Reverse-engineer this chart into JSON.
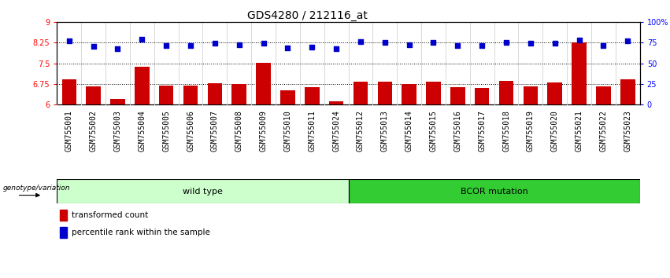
{
  "title": "GDS4280 / 212116_at",
  "categories": [
    "GSM755001",
    "GSM755002",
    "GSM755003",
    "GSM755004",
    "GSM755005",
    "GSM755006",
    "GSM755007",
    "GSM755008",
    "GSM755009",
    "GSM755010",
    "GSM755011",
    "GSM755024",
    "GSM755012",
    "GSM755013",
    "GSM755014",
    "GSM755015",
    "GSM755016",
    "GSM755017",
    "GSM755018",
    "GSM755019",
    "GSM755020",
    "GSM755021",
    "GSM755022",
    "GSM755023"
  ],
  "red_values": [
    6.92,
    6.64,
    6.18,
    7.38,
    6.68,
    6.69,
    6.77,
    6.75,
    7.52,
    6.52,
    6.63,
    6.12,
    6.83,
    6.82,
    6.73,
    6.84,
    6.62,
    6.61,
    6.85,
    6.65,
    6.79,
    8.25,
    6.65,
    6.92
  ],
  "blue_values": [
    77,
    71,
    68,
    79,
    72,
    72,
    74,
    73,
    74,
    69,
    70,
    68,
    76,
    75,
    73,
    75,
    72,
    72,
    75,
    74,
    74,
    78,
    72,
    77
  ],
  "wild_type_count": 12,
  "bcor_count": 12,
  "ylim_left": [
    6.0,
    9.0
  ],
  "ylim_right": [
    0,
    100
  ],
  "yticks_left": [
    6.0,
    6.75,
    7.5,
    8.25,
    9.0
  ],
  "ytick_labels_left": [
    "6",
    "6.75",
    "7.5",
    "8.25",
    "9"
  ],
  "yticks_right": [
    0,
    25,
    50,
    75,
    100
  ],
  "ytick_labels_right": [
    "0",
    "25",
    "50",
    "75",
    "100%"
  ],
  "hlines": [
    6.75,
    7.5,
    8.25
  ],
  "bar_color": "#cc0000",
  "dot_color": "#0000cc",
  "wt_bg_color": "#ccffcc",
  "bcor_bg_color": "#33cc33",
  "xticklabel_bg": "#d4d4d4",
  "xlabel_label": "genotype/variation",
  "wt_label": "wild type",
  "bcor_label": "BCOR mutation",
  "legend_bar_label": "transformed count",
  "legend_dot_label": "percentile rank within the sample",
  "title_fontsize": 10,
  "tick_fontsize": 7,
  "bar_width": 0.6,
  "dot_size": 18
}
